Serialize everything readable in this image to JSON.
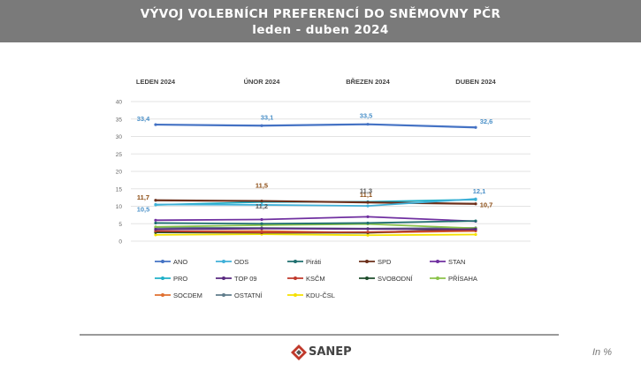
{
  "header": {
    "title": "VÝVOJ VOLEBNÍCH PREFERENCÍ DO SNĚMOVNY PČR",
    "subtitle": "leden - duben 2024"
  },
  "footer": {
    "logo_text": "SANEP",
    "unit_note": "In %"
  },
  "chart_data": {
    "type": "line",
    "categories": [
      "LEDEN 2024",
      "ÚNOR 2024",
      "BŘEZEN 2024",
      "DUBEN 2024"
    ],
    "ylim": [
      0,
      40
    ],
    "yticks": [
      0,
      5,
      10,
      15,
      20,
      25,
      30,
      35,
      40
    ],
    "grid": true,
    "legend_position": "bottom",
    "series": [
      {
        "name": "ANO",
        "color": "#4472c4",
        "values": [
          33.4,
          33.1,
          33.5,
          32.6
        ],
        "labels": [
          "33,4",
          "33,1",
          "33,5",
          "32,6"
        ],
        "label_color": "#4a90c8"
      },
      {
        "name": "ODS",
        "color": "#40b0d8",
        "values": [
          10.5,
          10.4,
          10.1,
          12.1
        ],
        "labels": [
          "10,5",
          "",
          "",
          "12,1"
        ],
        "label_color": "#4a90c8"
      },
      {
        "name": "Piráti",
        "color": "#1f6f6f",
        "values": [
          5.2,
          5.0,
          5.2,
          5.8
        ]
      },
      {
        "name": "SPD",
        "color": "#6b2f1a",
        "values": [
          11.7,
          11.5,
          11.1,
          10.7
        ],
        "labels": [
          "11,7",
          "11,5",
          "11,1",
          "10,7"
        ],
        "label_color": "#8a4a10"
      },
      {
        "name": "STAN",
        "color": "#7030a0",
        "values": [
          6.0,
          6.2,
          7.0,
          5.7
        ]
      },
      {
        "name": "PRO",
        "color": "#20b0c8",
        "values": [
          10.4,
          11.2,
          11.3,
          11.9
        ],
        "labels": [
          "",
          "11,2",
          "11,3",
          ""
        ],
        "label_color": "#555555"
      },
      {
        "name": "TOP 09",
        "color": "#5a2a80",
        "values": [
          3.4,
          3.6,
          3.5,
          3.4
        ]
      },
      {
        "name": "KSČM",
        "color": "#c0392b",
        "values": [
          2.9,
          2.5,
          2.6,
          3.1
        ]
      },
      {
        "name": "SVOBODNÍ",
        "color": "#1e4d2b",
        "values": [
          2.5,
          2.4,
          2.4,
          3.5
        ]
      },
      {
        "name": "PŘÍSAHA",
        "color": "#8bc34a",
        "values": [
          4.1,
          4.6,
          4.9,
          3.7
        ]
      },
      {
        "name": "SOCDEM",
        "color": "#e07030",
        "values": [
          2.8,
          2.9,
          2.4,
          2.9
        ]
      },
      {
        "name": "OSTATNÍ",
        "color": "#607d8b",
        "values": [
          3.9,
          3.8,
          3.6,
          3.8
        ]
      },
      {
        "name": "KDU-ČSL",
        "color": "#f5e000",
        "values": [
          1.8,
          2.0,
          1.7,
          1.9
        ]
      }
    ]
  }
}
